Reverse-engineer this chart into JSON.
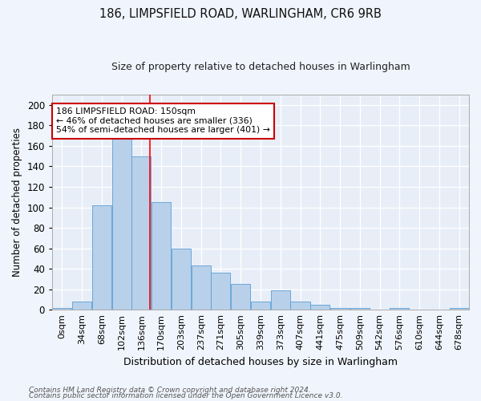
{
  "title": "186, LIMPSFIELD ROAD, WARLINGHAM, CR6 9RB",
  "subtitle": "Size of property relative to detached houses in Warlingham",
  "xlabel": "Distribution of detached houses by size in Warlingham",
  "ylabel": "Number of detached properties",
  "bar_color": "#b8d0ea",
  "bar_edge_color": "#5a9fd4",
  "background_color": "#e8eef8",
  "grid_color": "#ffffff",
  "fig_facecolor": "#f0f4fc",
  "categories": [
    "0sqm",
    "34sqm",
    "68sqm",
    "102sqm",
    "136sqm",
    "170sqm",
    "203sqm",
    "237sqm",
    "271sqm",
    "305sqm",
    "339sqm",
    "373sqm",
    "407sqm",
    "441sqm",
    "475sqm",
    "509sqm",
    "542sqm",
    "576sqm",
    "610sqm",
    "644sqm",
    "678sqm"
  ],
  "values": [
    2,
    8,
    102,
    167,
    150,
    105,
    60,
    43,
    36,
    25,
    8,
    19,
    8,
    5,
    2,
    2,
    0,
    2,
    0,
    0,
    2
  ],
  "ylim": [
    0,
    210
  ],
  "yticks": [
    0,
    20,
    40,
    60,
    80,
    100,
    120,
    140,
    160,
    180,
    200
  ],
  "red_line_x": 4.44,
  "annotation_text": "186 LIMPSFIELD ROAD: 150sqm\n← 46% of detached houses are smaller (336)\n54% of semi-detached houses are larger (401) →",
  "annotation_box_facecolor": "#ffffff",
  "annotation_box_edgecolor": "#cc0000",
  "footnote1": "Contains HM Land Registry data © Crown copyright and database right 2024.",
  "footnote2": "Contains public sector information licensed under the Open Government Licence v3.0."
}
